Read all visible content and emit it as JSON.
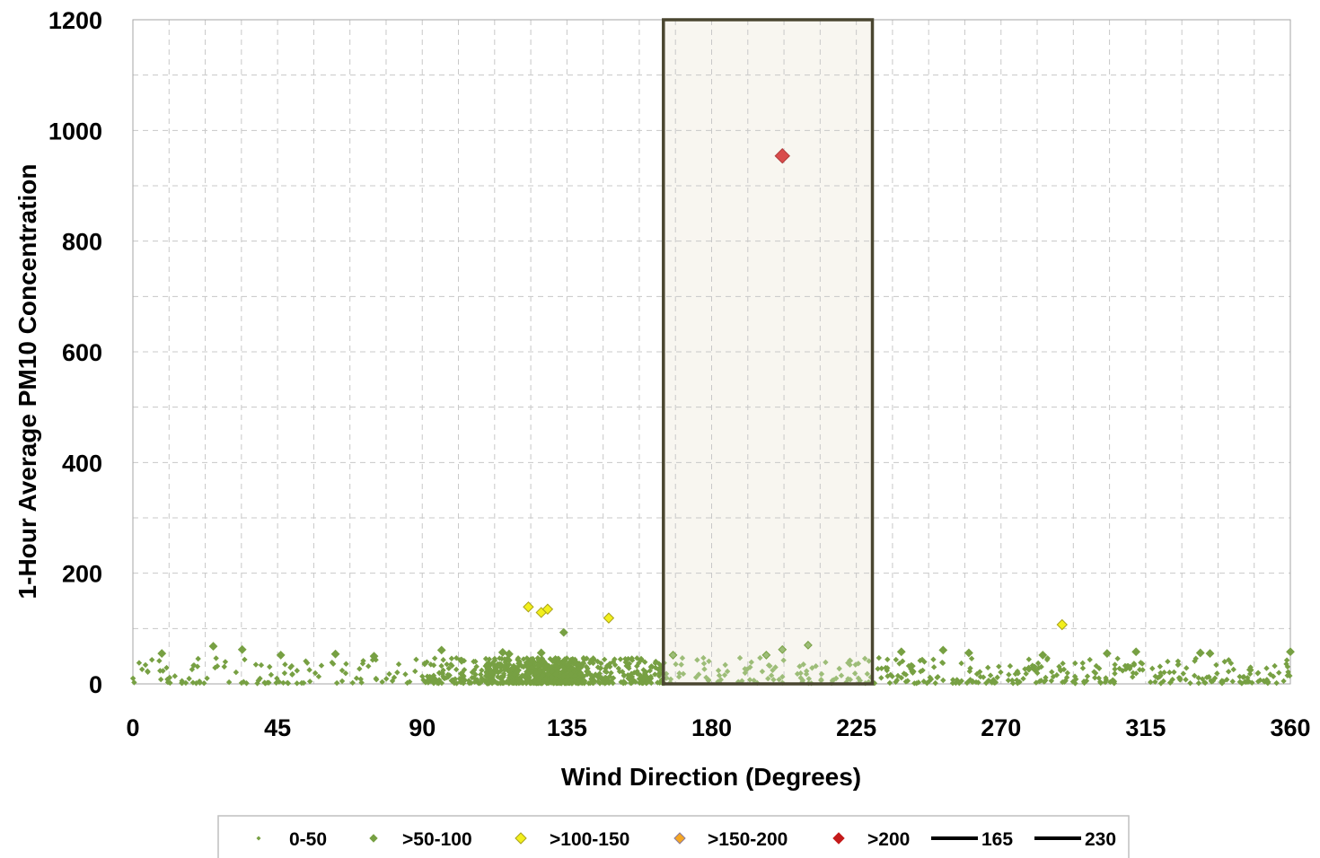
{
  "chart_data": {
    "type": "scatter",
    "title": "",
    "xlabel": "Wind Direction (Degrees)",
    "ylabel": "1-Hour Average PM10 Concentration",
    "xlim": [
      0,
      360
    ],
    "ylim": [
      0,
      1200
    ],
    "xticks": [
      0,
      45,
      90,
      135,
      180,
      225,
      270,
      315,
      360
    ],
    "yticks": [
      0,
      200,
      400,
      600,
      800,
      1000,
      1200
    ],
    "grid": true,
    "legend_position": "bottom",
    "highlight_band": {
      "x_start": 165,
      "x_end": 230,
      "fill": "#f8f6f0",
      "stroke": "#4a4630"
    },
    "series": [
      {
        "name": "0-50",
        "marker": "dot",
        "color": "#77a043",
        "density": [
          [
            0,
            90,
            110
          ],
          [
            90,
            110,
            100
          ],
          [
            110,
            125,
            220
          ],
          [
            125,
            140,
            380
          ],
          [
            140,
            165,
            170
          ],
          [
            165,
            230,
            100
          ],
          [
            230,
            270,
            85
          ],
          [
            270,
            360,
            190
          ]
        ]
      },
      {
        "name": ">50-100",
        "marker": "diamond",
        "color": "#77a043",
        "points": [
          [
            9,
            55
          ],
          [
            25,
            68
          ],
          [
            34,
            62
          ],
          [
            46,
            52
          ],
          [
            63,
            54
          ],
          [
            75,
            50
          ],
          [
            96,
            61
          ],
          [
            115,
            57
          ],
          [
            117,
            54
          ],
          [
            127,
            56
          ],
          [
            134,
            93
          ],
          [
            168,
            52
          ],
          [
            197,
            52
          ],
          [
            202,
            62
          ],
          [
            210,
            70
          ],
          [
            239,
            58
          ],
          [
            252,
            61
          ],
          [
            260,
            56
          ],
          [
            283,
            52
          ],
          [
            303,
            55
          ],
          [
            312,
            58
          ],
          [
            332,
            56
          ],
          [
            335,
            55
          ],
          [
            360,
            58
          ]
        ]
      },
      {
        "name": ">100-150",
        "marker": "diamond",
        "color": "#f2ef1c",
        "points": [
          [
            123,
            139
          ],
          [
            127,
            129
          ],
          [
            129,
            135
          ],
          [
            148,
            119
          ],
          [
            289,
            107
          ]
        ]
      },
      {
        "name": ">150-200",
        "marker": "diamond",
        "color": "#f5a623",
        "points": []
      },
      {
        "name": ">200",
        "marker": "diamond",
        "color": "#d94c4c",
        "legend_color": "#c41a1a",
        "points": [
          [
            202,
            954
          ]
        ]
      },
      {
        "name": "165",
        "marker": "line",
        "color": "#000000",
        "x": 165
      },
      {
        "name": "230",
        "marker": "line",
        "color": "#000000",
        "x": 230
      }
    ]
  }
}
